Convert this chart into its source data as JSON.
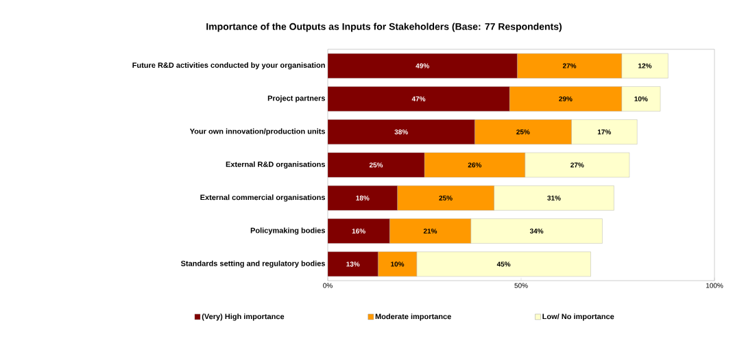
{
  "chart_data": {
    "type": "bar",
    "orientation": "horizontal",
    "stacked": true,
    "title": "Importance of the Outputs as Inputs for Stakeholders (Base: 77 Respondents)",
    "categories": [
      "Future R&D activities conducted by your organisation",
      "Project partners",
      "Your own innovation/production units",
      "External R&D organisations",
      "External commercial organisations",
      "Policymaking bodies",
      "Standards setting and regulatory bodies"
    ],
    "series": [
      {
        "name": "(Very) High importance",
        "color": "#800000",
        "values": [
          49,
          47,
          38,
          25,
          18,
          16,
          13
        ],
        "value_labels": [
          "49%",
          "47%",
          "38%",
          "25%",
          "18%",
          "16%",
          "13%"
        ]
      },
      {
        "name": "Moderate importance",
        "color": "#ff9900",
        "values": [
          27,
          29,
          25,
          26,
          25,
          21,
          10
        ],
        "value_labels": [
          "27%",
          "29%",
          "25%",
          "26%",
          "25%",
          "21%",
          "10%"
        ]
      },
      {
        "name": "Low/ No importance",
        "color": "#ffffcc",
        "values": [
          12,
          10,
          17,
          27,
          31,
          34,
          45
        ],
        "value_labels": [
          "12%",
          "10%",
          "17%",
          "27%",
          "31%",
          "34%",
          "45%"
        ]
      }
    ],
    "xlim": [
      0,
      100
    ],
    "xticks": [
      {
        "value": 0,
        "label": "0%"
      },
      {
        "value": 50,
        "label": "50%"
      },
      {
        "value": 100,
        "label": "100%"
      }
    ],
    "grid": false,
    "legend": "bottom"
  }
}
